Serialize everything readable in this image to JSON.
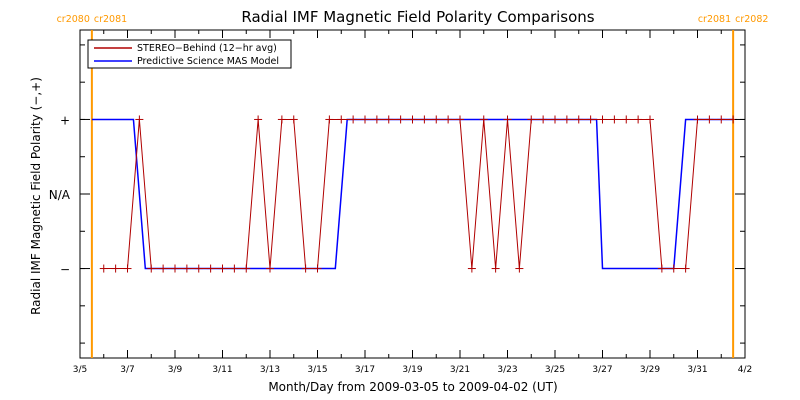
{
  "chart_data": {
    "type": "line",
    "title": "Radial IMF Magnetic Field Polarity Comparisons",
    "xlabel": "Month/Day from 2009-03-05 to 2009-04-02 (UT)",
    "ylabel": "Radial IMF Magnetic Field Polarity (−,+)",
    "xlim": [
      "2009-03-05T12:00",
      "2009-04-02T12:00"
    ],
    "ylim": [
      -2.2,
      2.2
    ],
    "y_ticks": [
      {
        "value": 1,
        "label": "+"
      },
      {
        "value": 0,
        "label": "N/A"
      },
      {
        "value": -1,
        "label": "−"
      }
    ],
    "x_ticks": [
      {
        "value": "2009-03-05T12:00",
        "label": "3/5"
      },
      {
        "value": "2009-03-07T12:00",
        "label": "3/7"
      },
      {
        "value": "2009-03-09T12:00",
        "label": "3/9"
      },
      {
        "value": "2009-03-11T12:00",
        "label": "3/11"
      },
      {
        "value": "2009-03-13T12:00",
        "label": "3/13"
      },
      {
        "value": "2009-03-15T12:00",
        "label": "3/15"
      },
      {
        "value": "2009-03-17T12:00",
        "label": "3/17"
      },
      {
        "value": "2009-03-19T12:00",
        "label": "3/19"
      },
      {
        "value": "2009-03-21T12:00",
        "label": "3/21"
      },
      {
        "value": "2009-03-23T12:00",
        "label": "3/23"
      },
      {
        "value": "2009-03-25T12:00",
        "label": "3/25"
      },
      {
        "value": "2009-03-27T12:00",
        "label": "3/27"
      },
      {
        "value": "2009-03-29T12:00",
        "label": "3/29"
      },
      {
        "value": "2009-03-31T12:00",
        "label": "3/31"
      },
      {
        "value": "2009-04-02T12:00",
        "label": "4/2"
      }
    ],
    "legend": {
      "placement": "top-left",
      "entries": [
        {
          "name": "STEREO−Behind (12−hr avg)",
          "color": "#b00000"
        },
        {
          "name": "Predictive Science MAS Model",
          "color": "#0000ff"
        }
      ]
    },
    "carrington_markers": [
      {
        "x": "2009-03-06T00:00",
        "left_label": "cr2080",
        "right_label": "cr2081",
        "color": "#ff9900"
      },
      {
        "x": "2009-04-02T00:00",
        "left_label": "cr2081",
        "right_label": "cr2082",
        "color": "#ff9900"
      }
    ],
    "series": [
      {
        "name": "STEREO−Behind (12−hr avg)",
        "color": "#b00000",
        "markers": "plus",
        "x": [
          "2009-03-06T12:00",
          "2009-03-07T00:00",
          "2009-03-07T12:00",
          "2009-03-08T00:00",
          "2009-03-08T12:00",
          "2009-03-09T00:00",
          "2009-03-09T12:00",
          "2009-03-10T00:00",
          "2009-03-10T12:00",
          "2009-03-11T00:00",
          "2009-03-11T12:00",
          "2009-03-12T00:00",
          "2009-03-12T12:00",
          "2009-03-13T00:00",
          "2009-03-13T12:00",
          "2009-03-14T00:00",
          "2009-03-14T12:00",
          "2009-03-15T00:00",
          "2009-03-15T12:00",
          "2009-03-16T00:00",
          "2009-03-16T12:00",
          "2009-03-17T00:00",
          "2009-03-17T12:00",
          "2009-03-18T00:00",
          "2009-03-18T12:00",
          "2009-03-19T00:00",
          "2009-03-19T12:00",
          "2009-03-20T00:00",
          "2009-03-20T12:00",
          "2009-03-21T00:00",
          "2009-03-21T12:00",
          "2009-03-22T00:00",
          "2009-03-22T12:00",
          "2009-03-23T00:00",
          "2009-03-23T12:00",
          "2009-03-24T00:00",
          "2009-03-24T12:00",
          "2009-03-25T00:00",
          "2009-03-25T12:00",
          "2009-03-26T00:00",
          "2009-03-26T12:00",
          "2009-03-27T00:00",
          "2009-03-27T12:00",
          "2009-03-28T00:00",
          "2009-03-28T12:00",
          "2009-03-29T00:00",
          "2009-03-29T12:00",
          "2009-03-30T00:00",
          "2009-03-30T12:00",
          "2009-03-31T00:00",
          "2009-03-31T12:00",
          "2009-04-01T00:00",
          "2009-04-01T12:00",
          "2009-04-02T00:00"
        ],
        "y": [
          -1,
          -1,
          -1,
          1,
          -1,
          -1,
          -1,
          -1,
          -1,
          -1,
          -1,
          -1,
          -1,
          1,
          -1,
          1,
          1,
          -1,
          -1,
          1,
          1,
          1,
          1,
          1,
          1,
          1,
          1,
          1,
          1,
          1,
          1,
          -1,
          1,
          -1,
          1,
          -1,
          1,
          1,
          1,
          1,
          1,
          1,
          1,
          1,
          1,
          1,
          1,
          -1,
          -1,
          -1,
          1,
          1,
          1,
          1
        ]
      },
      {
        "name": "Predictive Science MAS Model",
        "color": "#0000ff",
        "x": [
          "2009-03-06T00:00",
          "2009-03-07T18:00",
          "2009-03-08T06:00",
          "2009-03-16T06:00",
          "2009-03-16T18:00",
          "2009-03-27T06:00",
          "2009-03-27T12:00",
          "2009-03-30T12:00",
          "2009-03-31T00:00",
          "2009-04-02T00:00"
        ],
        "y": [
          1,
          1,
          -1,
          -1,
          1,
          1,
          -1,
          -1,
          1,
          1
        ]
      }
    ]
  }
}
